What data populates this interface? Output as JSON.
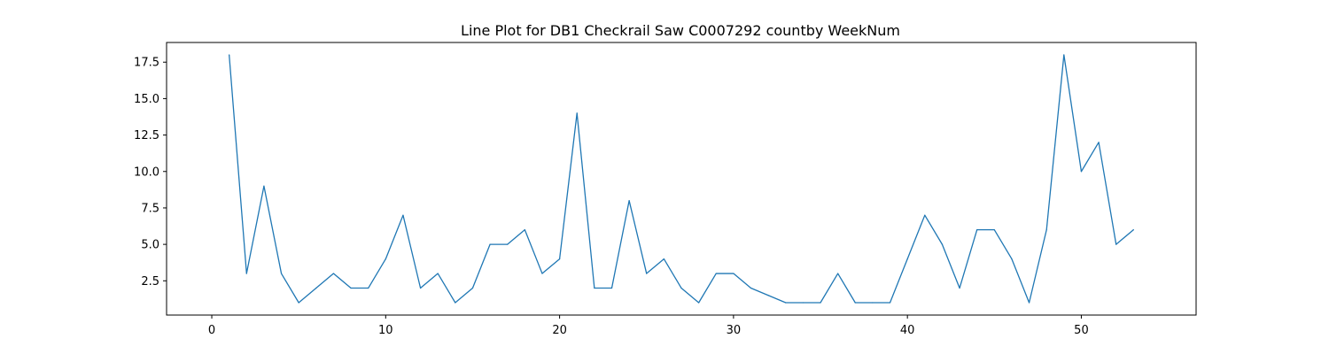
{
  "chart_data": {
    "type": "line",
    "title": "Line Plot for DB1 Checkrail Saw C0007292 countby WeekNum",
    "xlabel": "",
    "ylabel": "",
    "xlim": [
      -2.6,
      56.6
    ],
    "ylim": [
      0.15,
      18.85
    ],
    "xticks": [
      0,
      10,
      20,
      30,
      40,
      50
    ],
    "xtick_labels": [
      "0",
      "10",
      "20",
      "30",
      "40",
      "50"
    ],
    "yticks": [
      2.5,
      5.0,
      7.5,
      10.0,
      12.5,
      15.0,
      17.5
    ],
    "ytick_labels": [
      "2.5",
      "5.0",
      "7.5",
      "10.0",
      "12.5",
      "15.0",
      "17.5"
    ],
    "grid": false,
    "legend": "none",
    "series": [
      {
        "color": "#1f77b4",
        "x": [
          1,
          2,
          3,
          4,
          5,
          6,
          7,
          8,
          9,
          10,
          11,
          12,
          13,
          14,
          15,
          16,
          17,
          18,
          19,
          20,
          21,
          22,
          23,
          24,
          25,
          26,
          27,
          28,
          29,
          30,
          31,
          32,
          33,
          34,
          35,
          36,
          37,
          38,
          39,
          40,
          41,
          42,
          43,
          44,
          45,
          46,
          47,
          48,
          49,
          50,
          51,
          52,
          53
        ],
        "y": [
          18,
          3,
          9,
          3,
          1,
          2,
          3,
          2,
          2,
          4,
          7,
          2,
          3,
          1,
          2,
          5,
          5,
          6,
          3,
          4,
          14,
          2,
          2,
          8,
          3,
          4,
          2,
          1,
          3,
          3,
          2,
          1.5,
          1,
          1,
          1,
          3,
          1,
          1,
          1,
          4,
          7,
          5,
          2,
          6,
          6,
          4,
          1,
          6,
          18,
          10,
          12,
          5,
          6
        ]
      }
    ]
  }
}
